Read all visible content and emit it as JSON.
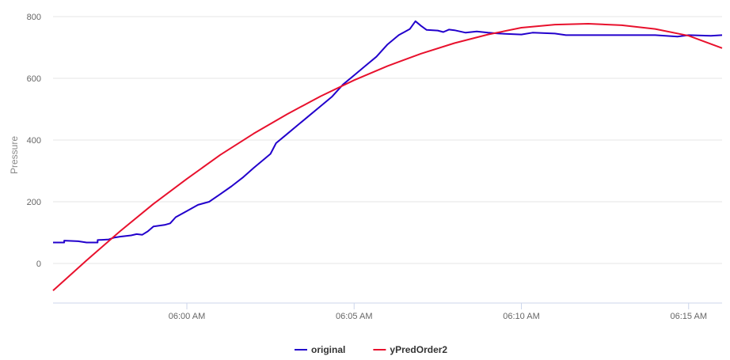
{
  "chart_data": {
    "type": "line",
    "ylabel": "Pressure",
    "xlabel": "",
    "ylim": [
      -90,
      800
    ],
    "y_ticks": [
      0,
      200,
      400,
      600,
      800
    ],
    "x_range_minutes": [
      "05:56",
      "06:16"
    ],
    "x_ticks": [
      {
        "time": "06:00",
        "label": "06:00 AM"
      },
      {
        "time": "06:05",
        "label": "06:05 AM"
      },
      {
        "time": "06:10",
        "label": "06:10 AM"
      },
      {
        "time": "06:15",
        "label": "06:15 AM"
      }
    ],
    "grid": "horizontal",
    "legend_position": "bottom-center",
    "series": [
      {
        "name": "original",
        "color": "#2200cc",
        "points": [
          [
            "05:56:00",
            68
          ],
          [
            "05:56:20",
            68
          ],
          [
            "05:56:20",
            74
          ],
          [
            "05:56:45",
            72
          ],
          [
            "05:57:00",
            68
          ],
          [
            "05:57:20",
            68
          ],
          [
            "05:57:20",
            76
          ],
          [
            "05:57:40",
            78
          ],
          [
            "05:57:50",
            84
          ],
          [
            "05:58:00",
            87
          ],
          [
            "05:58:20",
            91
          ],
          [
            "05:58:30",
            95
          ],
          [
            "05:58:40",
            93
          ],
          [
            "05:58:50",
            104
          ],
          [
            "05:59:00",
            120
          ],
          [
            "05:59:20",
            125
          ],
          [
            "05:59:30",
            130
          ],
          [
            "05:59:40",
            150
          ],
          [
            "06:00:00",
            170
          ],
          [
            "06:00:20",
            190
          ],
          [
            "06:00:40",
            200
          ],
          [
            "06:01:00",
            225
          ],
          [
            "06:01:20",
            250
          ],
          [
            "06:01:40",
            278
          ],
          [
            "06:02:00",
            310
          ],
          [
            "06:02:20",
            340
          ],
          [
            "06:02:30",
            355
          ],
          [
            "06:02:40",
            390
          ],
          [
            "06:03:00",
            420
          ],
          [
            "06:03:20",
            450
          ],
          [
            "06:03:40",
            480
          ],
          [
            "06:04:00",
            510
          ],
          [
            "06:04:20",
            540
          ],
          [
            "06:04:40",
            580
          ],
          [
            "06:05:00",
            610
          ],
          [
            "06:05:20",
            640
          ],
          [
            "06:05:40",
            670
          ],
          [
            "06:06:00",
            710
          ],
          [
            "06:06:20",
            740
          ],
          [
            "06:06:40",
            760
          ],
          [
            "06:06:50",
            785
          ],
          [
            "06:07:00",
            770
          ],
          [
            "06:07:10",
            757
          ],
          [
            "06:07:30",
            755
          ],
          [
            "06:07:40",
            750
          ],
          [
            "06:07:50",
            758
          ],
          [
            "06:08:00",
            756
          ],
          [
            "06:08:20",
            748
          ],
          [
            "06:08:40",
            752
          ],
          [
            "06:09:00",
            748
          ],
          [
            "06:09:20",
            745
          ],
          [
            "06:10:00",
            742
          ],
          [
            "06:10:20",
            748
          ],
          [
            "06:11:00",
            745
          ],
          [
            "06:11:20",
            740
          ],
          [
            "06:12:00",
            740
          ],
          [
            "06:14:00",
            740
          ],
          [
            "06:14:40",
            735
          ],
          [
            "06:15:00",
            740
          ],
          [
            "06:15:40",
            738
          ],
          [
            "06:16:00",
            740
          ]
        ]
      },
      {
        "name": "yPredOrder2",
        "color": "#e8112d",
        "points": [
          [
            "05:56:00",
            -88
          ],
          [
            "05:57:00",
            10
          ],
          [
            "05:58:00",
            104
          ],
          [
            "05:59:00",
            193
          ],
          [
            "06:00:00",
            274
          ],
          [
            "06:01:00",
            352
          ],
          [
            "06:02:00",
            421
          ],
          [
            "06:03:00",
            484
          ],
          [
            "06:04:00",
            542
          ],
          [
            "06:05:00",
            594
          ],
          [
            "06:06:00",
            640
          ],
          [
            "06:07:00",
            680
          ],
          [
            "06:08:00",
            714
          ],
          [
            "06:09:00",
            742
          ],
          [
            "06:10:00",
            764
          ],
          [
            "06:11:00",
            774
          ],
          [
            "06:12:00",
            777
          ],
          [
            "06:13:00",
            772
          ],
          [
            "06:14:00",
            760
          ],
          [
            "06:15:00",
            738
          ],
          [
            "06:16:00",
            698
          ]
        ]
      }
    ]
  }
}
